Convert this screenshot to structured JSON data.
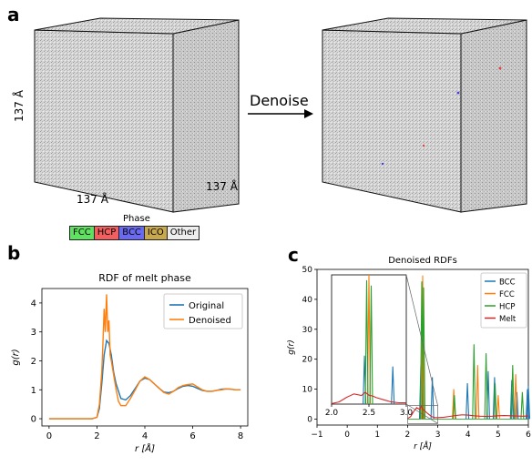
{
  "panels": {
    "a": "a",
    "b": "b",
    "c": "c"
  },
  "cube_labels": {
    "left_height": "137 Å",
    "left_depth": "137 Å",
    "right_depth": "137 Å"
  },
  "arrow_label": "Denoise",
  "phase_legend": {
    "title": "Phase",
    "items": [
      {
        "label": "FCC",
        "color": "#5fe25f"
      },
      {
        "label": "HCP",
        "color": "#f25f5f"
      },
      {
        "label": "BCC",
        "color": "#6a6af0"
      },
      {
        "label": "ICO",
        "color": "#c8a84c"
      },
      {
        "label": "Other",
        "color": "#eeeeee"
      }
    ]
  },
  "chart_data": [
    {
      "type": "line",
      "title": "RDF of melt phase",
      "xlabel": "r [Å]",
      "ylabel": "g(r)",
      "xlim": [
        -0.3,
        8.3
      ],
      "ylim": [
        -0.25,
        4.5
      ],
      "xticks": [
        0,
        2,
        4,
        6,
        8
      ],
      "yticks": [
        0,
        1,
        2,
        3,
        4
      ],
      "legend_position": "top-right",
      "series": [
        {
          "name": "Original",
          "color": "#1f77b4",
          "x": [
            0,
            1.8,
            2.0,
            2.1,
            2.2,
            2.3,
            2.4,
            2.5,
            2.6,
            2.7,
            2.8,
            3.0,
            3.2,
            3.4,
            3.6,
            3.8,
            4.0,
            4.2,
            4.4,
            4.6,
            4.8,
            5.0,
            5.2,
            5.4,
            5.6,
            5.8,
            6.0,
            6.2,
            6.4,
            6.6,
            6.8,
            7.0,
            7.2,
            7.4,
            7.6,
            7.8,
            8.0
          ],
          "y": [
            0,
            0,
            0.05,
            0.35,
            1.2,
            2.2,
            2.7,
            2.6,
            2.2,
            1.6,
            1.2,
            0.7,
            0.65,
            0.8,
            1.05,
            1.3,
            1.4,
            1.35,
            1.2,
            1.05,
            0.92,
            0.9,
            0.95,
            1.05,
            1.12,
            1.15,
            1.12,
            1.05,
            0.98,
            0.95,
            0.95,
            0.98,
            1.02,
            1.03,
            1.02,
            1.0,
            1.0
          ]
        },
        {
          "name": "Denoised",
          "color": "#ff7f0e",
          "x": [
            0,
            1.8,
            2.0,
            2.1,
            2.2,
            2.25,
            2.3,
            2.35,
            2.4,
            2.45,
            2.5,
            2.55,
            2.6,
            2.7,
            2.8,
            2.9,
            3.0,
            3.2,
            3.4,
            3.6,
            3.8,
            4.0,
            4.2,
            4.4,
            4.6,
            4.8,
            5.0,
            5.2,
            5.4,
            5.6,
            5.8,
            6.0,
            6.2,
            6.4,
            6.6,
            6.8,
            7.0,
            7.2,
            7.4,
            7.6,
            7.8,
            8.0
          ],
          "y": [
            0,
            0,
            0.05,
            0.5,
            1.6,
            2.6,
            3.8,
            3.0,
            4.3,
            3.0,
            3.4,
            2.2,
            2.0,
            1.5,
            1.0,
            0.6,
            0.45,
            0.45,
            0.7,
            1.0,
            1.3,
            1.45,
            1.35,
            1.2,
            1.05,
            0.9,
            0.85,
            0.95,
            1.08,
            1.15,
            1.18,
            1.2,
            1.1,
            1.0,
            0.95,
            0.95,
            0.98,
            1.0,
            1.03,
            1.02,
            1.0,
            1.0
          ]
        }
      ]
    },
    {
      "type": "line",
      "title": "Denoised RDFs",
      "xlabel": "r [Å]",
      "ylabel": "g(r)",
      "xlim": [
        -1,
        6
      ],
      "ylim": [
        -2,
        50
      ],
      "xticks": [
        -1,
        0,
        1,
        2,
        3,
        4,
        5,
        6
      ],
      "yticks": [
        0,
        10,
        20,
        30,
        40,
        50
      ],
      "legend_position": "top-right",
      "series": [
        {
          "name": "BCC",
          "color": "#1f77b4",
          "spikes": [
            [
              2.44,
              18
            ],
            [
              2.82,
              14
            ],
            [
              3.98,
              12
            ],
            [
              4.67,
              16
            ],
            [
              4.88,
              14
            ],
            [
              5.45,
              13
            ],
            [
              5.62,
              9
            ],
            [
              5.97,
              10
            ],
            [
              6.0,
              11
            ]
          ]
        },
        {
          "name": "FCC",
          "color": "#ff7f0e",
          "spikes": [
            [
              2.5,
              48
            ],
            [
              3.53,
              10
            ],
            [
              4.32,
              18
            ],
            [
              5.0,
              8
            ],
            [
              5.58,
              15
            ]
          ]
        },
        {
          "name": "HCP",
          "color": "#2ca02c",
          "spikes": [
            [
              2.47,
              46
            ],
            [
              2.53,
              44
            ],
            [
              3.55,
              8
            ],
            [
              4.2,
              25
            ],
            [
              4.6,
              22
            ],
            [
              4.9,
              12
            ],
            [
              5.48,
              18
            ],
            [
              5.8,
              9
            ]
          ]
        },
        {
          "name": "Melt",
          "color": "#d62728",
          "x": [
            2.0,
            2.1,
            2.2,
            2.3,
            2.4,
            2.45,
            2.5,
            2.55,
            2.6,
            2.7,
            2.8,
            2.9,
            3.0,
            3.2,
            3.4,
            3.6,
            3.8,
            4.0,
            4.2,
            4.4,
            4.6,
            4.8,
            5.0,
            5.2,
            5.4,
            5.6,
            5.8,
            6.0
          ],
          "y": [
            0.2,
            0.8,
            2.5,
            3.8,
            3.2,
            4.4,
            3.3,
            3.0,
            2.4,
            1.6,
            0.8,
            0.5,
            0.5,
            0.6,
            0.9,
            1.2,
            1.4,
            1.3,
            1.1,
            0.95,
            0.9,
            0.95,
            1.1,
            1.15,
            1.1,
            1.0,
            0.95,
            1.0
          ]
        }
      ],
      "inset": {
        "xlim": [
          2.0,
          3.0
        ],
        "ylim": [
          0,
          48
        ],
        "xticks": [
          2.0,
          2.5,
          3.0
        ],
        "xtick_labels": [
          "2.0",
          "2.5",
          "3.0"
        ]
      }
    }
  ]
}
